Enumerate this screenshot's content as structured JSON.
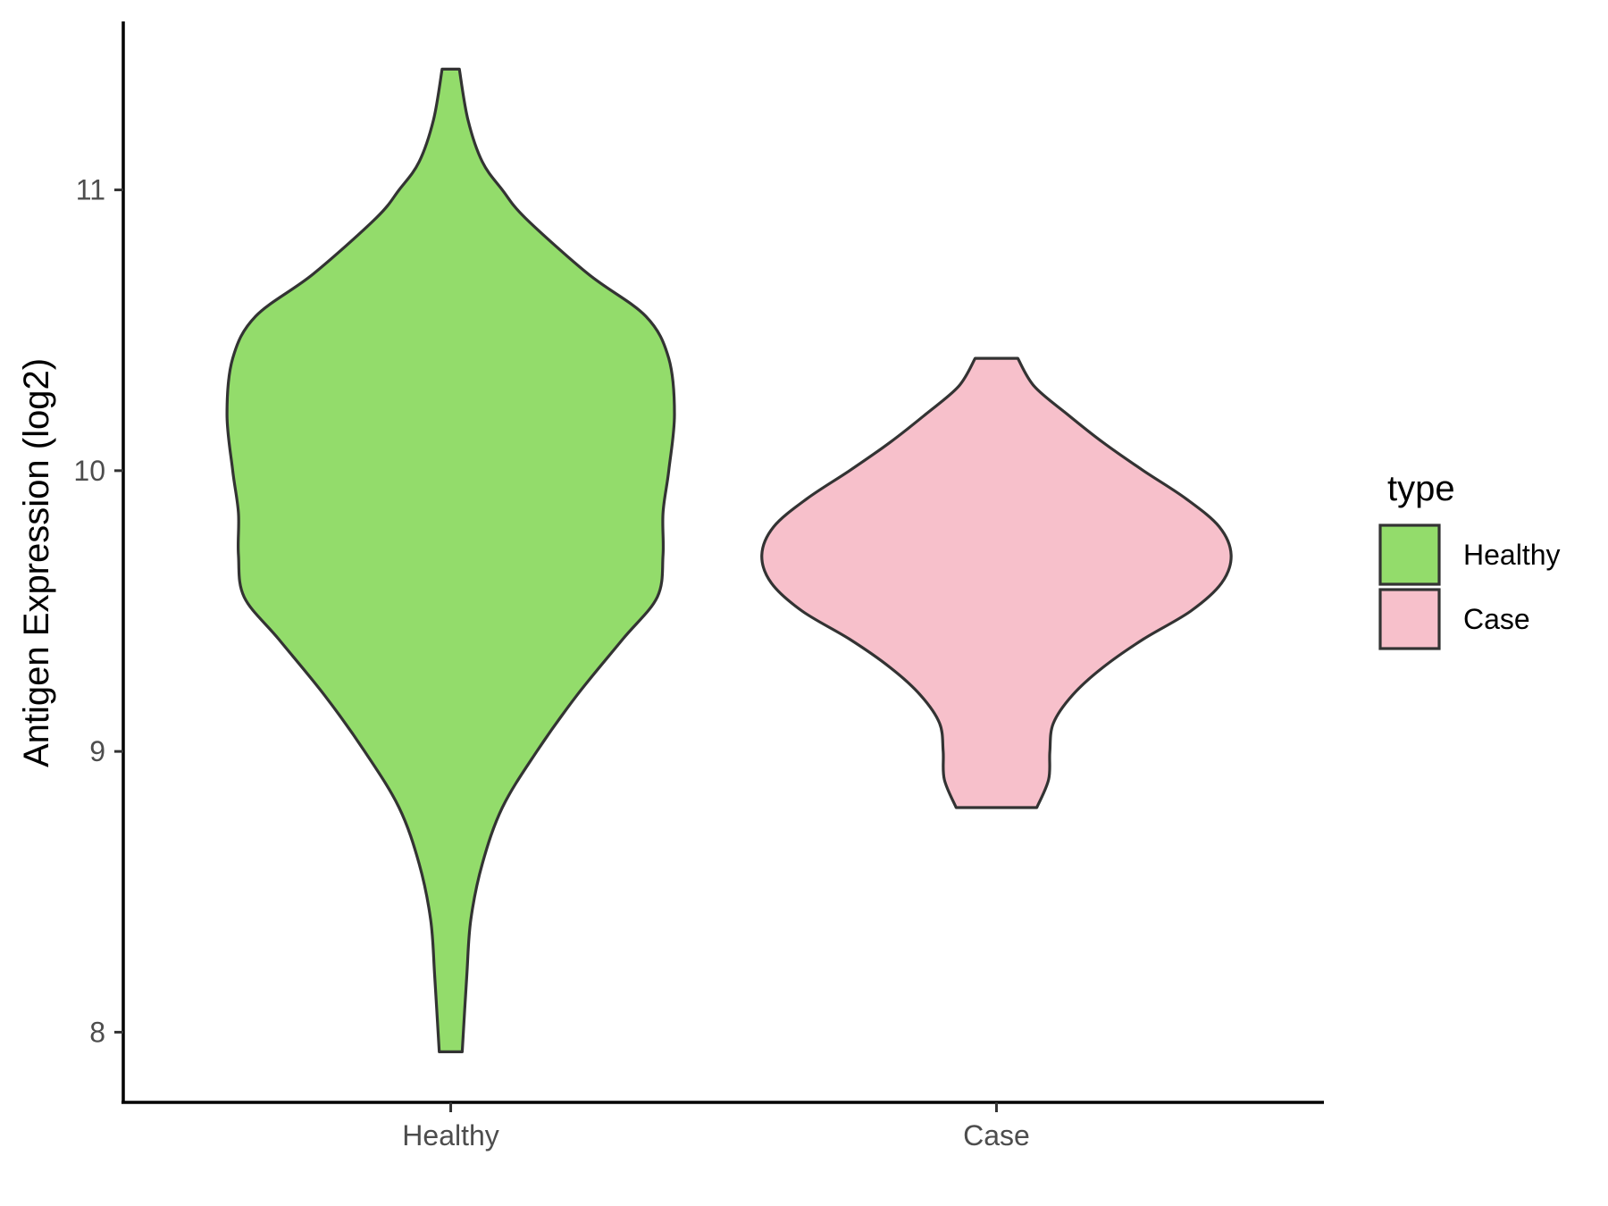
{
  "chart_data": {
    "type": "violin",
    "title": "",
    "xlabel": "",
    "ylabel": "Antigen Expression (log2)",
    "ylim": [
      7.75,
      11.6
    ],
    "yticks": [
      8,
      9,
      10,
      11
    ],
    "ytick_labels": [
      "8",
      "9",
      "10",
      "11"
    ],
    "categories": [
      "Healthy",
      "Case"
    ],
    "grid": false,
    "legend": {
      "title": "type",
      "position": "right",
      "entries": [
        {
          "label": "Healthy",
          "color": "#93dc6b"
        },
        {
          "label": "Case",
          "color": "#f7c0cb"
        }
      ]
    },
    "series": [
      {
        "name": "Healthy",
        "color": "#93dc6b",
        "min": 7.93,
        "max": 11.43,
        "max_halfwidth": 0.41,
        "density_profile": [
          [
            7.93,
            0.02
          ],
          [
            8.2,
            0.028
          ],
          [
            8.4,
            0.035
          ],
          [
            8.6,
            0.055
          ],
          [
            8.8,
            0.09
          ],
          [
            9.0,
            0.15
          ],
          [
            9.2,
            0.22
          ],
          [
            9.4,
            0.3
          ],
          [
            9.55,
            0.36
          ],
          [
            9.7,
            0.37
          ],
          [
            9.85,
            0.37
          ],
          [
            10.0,
            0.38
          ],
          [
            10.2,
            0.39
          ],
          [
            10.4,
            0.38
          ],
          [
            10.55,
            0.34
          ],
          [
            10.7,
            0.24
          ],
          [
            10.9,
            0.13
          ],
          [
            11.0,
            0.09
          ],
          [
            11.1,
            0.055
          ],
          [
            11.25,
            0.03
          ],
          [
            11.43,
            0.015
          ]
        ]
      },
      {
        "name": "Case",
        "color": "#f7c0cb",
        "min": 8.8,
        "max": 10.4,
        "max_halfwidth": 0.43,
        "density_profile": [
          [
            8.8,
            0.17
          ],
          [
            8.9,
            0.22
          ],
          [
            9.0,
            0.225
          ],
          [
            9.1,
            0.24
          ],
          [
            9.2,
            0.32
          ],
          [
            9.3,
            0.45
          ],
          [
            9.4,
            0.62
          ],
          [
            9.5,
            0.82
          ],
          [
            9.6,
            0.95
          ],
          [
            9.7,
            0.99
          ],
          [
            9.8,
            0.94
          ],
          [
            9.9,
            0.8
          ],
          [
            10.0,
            0.62
          ],
          [
            10.1,
            0.45
          ],
          [
            10.2,
            0.3
          ],
          [
            10.3,
            0.16
          ],
          [
            10.4,
            0.09
          ]
        ]
      }
    ]
  }
}
